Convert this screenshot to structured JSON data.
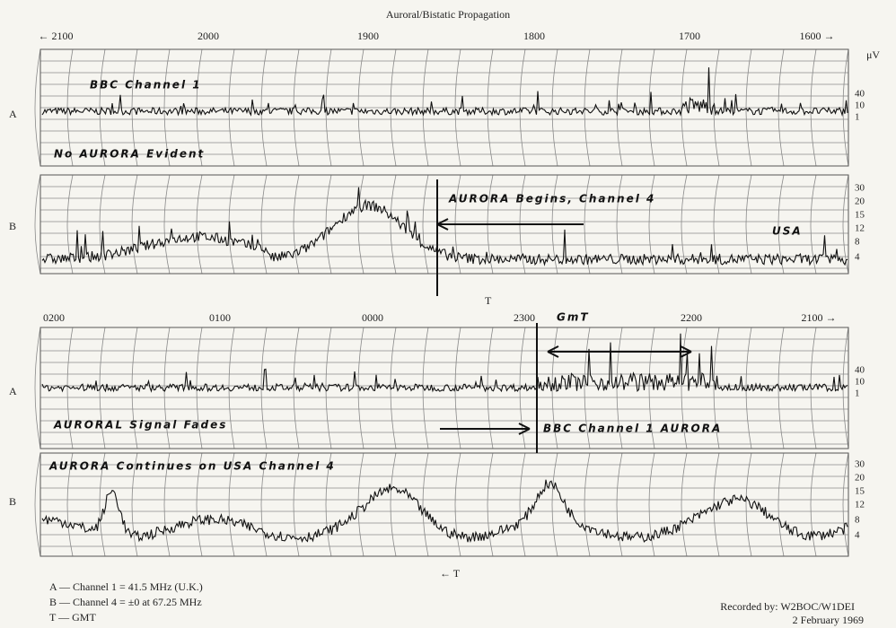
{
  "header": {
    "title": "Auroral/Bistatic Propagation"
  },
  "top_axis": {
    "labels": [
      "← 2100",
      "2000",
      "1900",
      "1800",
      "1700",
      "1600 →"
    ],
    "unit": "μV"
  },
  "bottom_axis": {
    "labels": [
      "0200",
      "0100",
      "0000",
      "2300",
      "2200",
      "2100 →"
    ],
    "note": "GmT"
  },
  "panels": [
    {
      "channel": "A",
      "scale": [
        "40",
        "10",
        "1"
      ],
      "notes": [
        "BBC Channel 1",
        "No AURORA Evident"
      ]
    },
    {
      "channel": "B",
      "scale": [
        "30",
        "20",
        "15",
        "12",
        "8",
        "4"
      ],
      "notes": [
        "AURORA Begins, Channel 4",
        "USA"
      ]
    },
    {
      "channel": "A",
      "scale": [
        "40",
        "10",
        "1"
      ],
      "notes": [
        "AURORAL Signal Fades",
        "BBC Channel 1 AURORA"
      ]
    },
    {
      "channel": "B",
      "scale": [
        "30",
        "20",
        "15",
        "12",
        "8",
        "4"
      ],
      "notes": [
        "AURORA Continues on USA Channel 4"
      ]
    }
  ],
  "markers": [
    "T",
    "← T"
  ],
  "legend": [
    "A — Channel 1 = 41.5 MHz (U.K.)",
    "B — Channel 4 = ±0 at 67.25 MHz",
    "T — GMT"
  ],
  "recorded_by": "Recorded by: W2BOC/W1DEI",
  "date": "2 February 1969"
}
